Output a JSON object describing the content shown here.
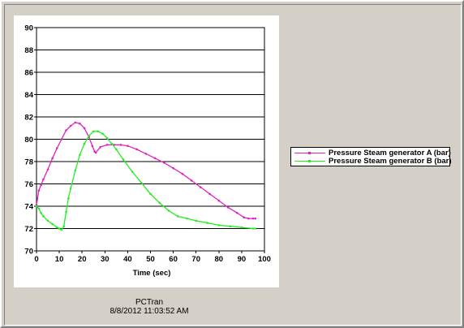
{
  "chart_data": {
    "type": "line",
    "xlabel": "Time (sec)",
    "ylabel": "",
    "xlim": [
      0,
      100
    ],
    "ylim": [
      70,
      90
    ],
    "xticks": [
      0,
      10,
      20,
      30,
      40,
      50,
      60,
      70,
      80,
      90,
      100
    ],
    "yticks": [
      70,
      72,
      74,
      76,
      78,
      80,
      82,
      84,
      86,
      88,
      90
    ],
    "grid": "horizontal",
    "legend_position": "right",
    "series": [
      {
        "name": "Pressure Steam generator A (bar)",
        "color": "#e020c0",
        "x": [
          0,
          1,
          2,
          3,
          5,
          7,
          9,
          11,
          13,
          15,
          17,
          19,
          21,
          23,
          24.5,
          25.5,
          26,
          28,
          31,
          34,
          37,
          40,
          44,
          48,
          52,
          56,
          60,
          64,
          68,
          72,
          76,
          80,
          84,
          88,
          91,
          93,
          95,
          96
        ],
        "y": [
          74.1,
          75.4,
          75.9,
          76.4,
          77.3,
          78.3,
          79.2,
          80.0,
          80.8,
          81.2,
          81.5,
          81.4,
          81.0,
          80.2,
          79.4,
          78.9,
          78.8,
          79.3,
          79.5,
          79.5,
          79.5,
          79.4,
          79.1,
          78.7,
          78.3,
          77.9,
          77.4,
          76.9,
          76.3,
          75.7,
          75.1,
          74.5,
          73.9,
          73.4,
          73.0,
          72.9,
          72.9,
          72.9
        ]
      },
      {
        "name": "Pressure Steam generator B (bar)",
        "color": "#22ee22",
        "x": [
          0,
          1,
          2,
          3,
          5,
          7,
          9,
          10,
          11,
          12,
          13,
          14,
          15,
          17,
          19,
          21,
          23,
          25,
          27,
          29,
          31,
          33,
          35,
          38,
          42,
          46,
          50,
          54,
          58,
          62,
          66,
          70,
          75,
          80,
          85,
          90,
          95,
          96
        ],
        "y": [
          74.0,
          73.8,
          73.4,
          73.1,
          72.7,
          72.4,
          72.1,
          72.0,
          71.9,
          72.2,
          73.5,
          74.7,
          75.6,
          77.2,
          78.6,
          79.6,
          80.3,
          80.7,
          80.7,
          80.5,
          80.1,
          79.6,
          79.1,
          78.2,
          77.1,
          76.1,
          75.1,
          74.3,
          73.6,
          73.1,
          72.9,
          72.7,
          72.5,
          72.3,
          72.2,
          72.1,
          72.0,
          72.0
        ]
      }
    ]
  },
  "footer": {
    "app": "PCTran",
    "timestamp": "8/8/2012 11:03:52 AM"
  }
}
